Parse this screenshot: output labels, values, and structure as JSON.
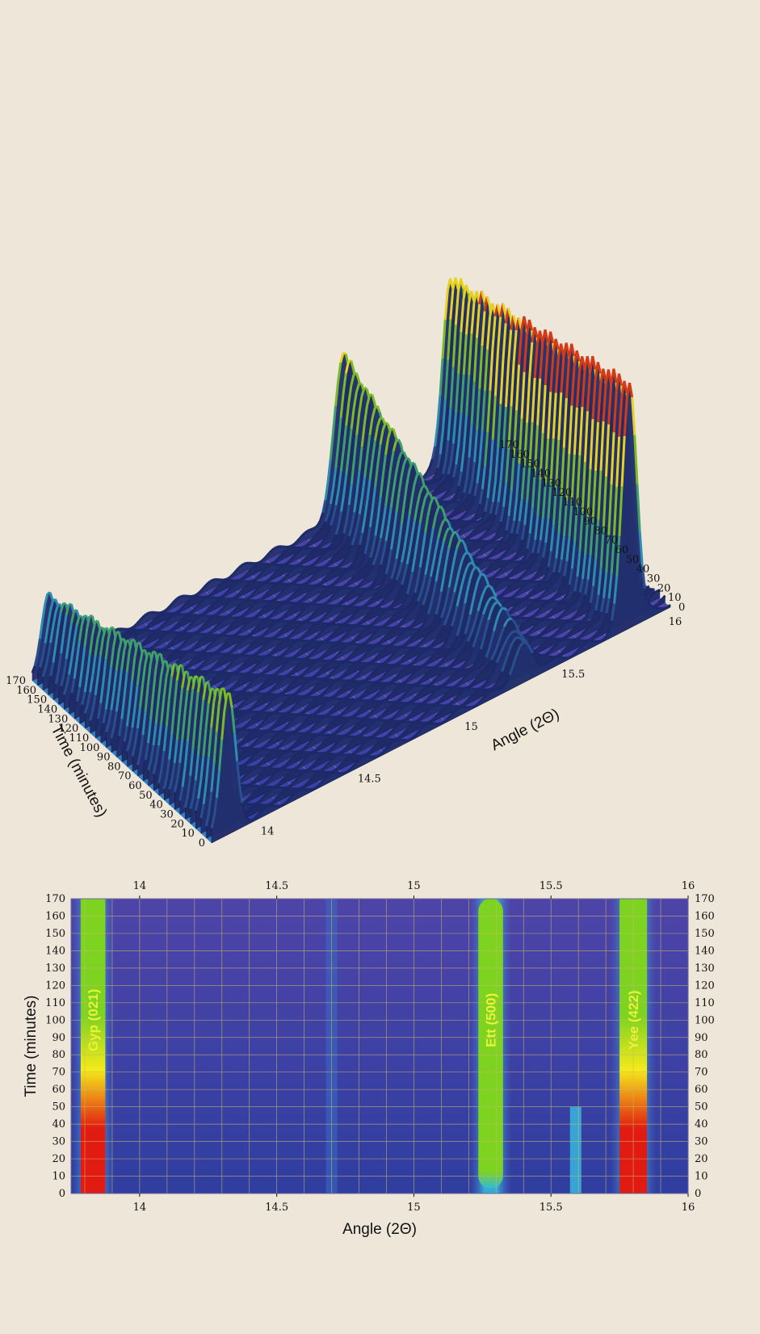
{
  "chart_data": [
    {
      "type": "surface",
      "xlabel": "Angle (2Θ)",
      "ylabel": "Time (minutes)",
      "xlim": [
        13.75,
        16
      ],
      "ylim": [
        0,
        170
      ],
      "x_ticks": [
        "14",
        "14.5",
        "15",
        "15.5",
        "16"
      ],
      "y_ticks": [
        "0",
        "10",
        "20",
        "30",
        "40",
        "50",
        "60",
        "70",
        "80",
        "90",
        "100",
        "110",
        "120",
        "130",
        "140",
        "150",
        "160",
        "170"
      ],
      "peaks": [
        {
          "name": "Gyp (021)",
          "x": 13.83
        },
        {
          "name": "Ett (500)",
          "x": 15.28
        },
        {
          "name": "Yee (422)",
          "x": 15.8
        }
      ]
    },
    {
      "type": "heatmap",
      "xlabel": "Angle (2Θ)",
      "ylabel": "Time (minutes)",
      "xlim": [
        13.75,
        16
      ],
      "ylim": [
        0,
        170
      ],
      "x_ticks": [
        "14",
        "14.5",
        "15",
        "15.5",
        "16"
      ],
      "y_ticks": [
        "0",
        "10",
        "20",
        "30",
        "40",
        "50",
        "60",
        "70",
        "80",
        "90",
        "100",
        "110",
        "120",
        "130",
        "140",
        "150",
        "160",
        "170"
      ],
      "grid": true,
      "colors": [
        "#2b3a9a",
        "#4a5fc0",
        "#35b8d8",
        "#7ed321",
        "#f4ea1a",
        "#e11b12"
      ],
      "peaks": [
        {
          "name": "Gyp (021)",
          "x": 13.83,
          "half_width": 0.045,
          "intensity_start": 1.0,
          "intensity_end": 0.55
        },
        {
          "name": "Ett (500)",
          "x": 15.28,
          "half_width": 0.045,
          "intensity_start": 0.55,
          "intensity_end": 0.6
        },
        {
          "name": "Yee (422)",
          "x": 15.8,
          "half_width": 0.05,
          "intensity_start": 1.0,
          "intensity_end": 0.55
        }
      ],
      "minor_peaks": [
        {
          "x": 15.59,
          "time_max": 50
        },
        {
          "x": 14.7,
          "time_max": 170
        }
      ]
    }
  ]
}
